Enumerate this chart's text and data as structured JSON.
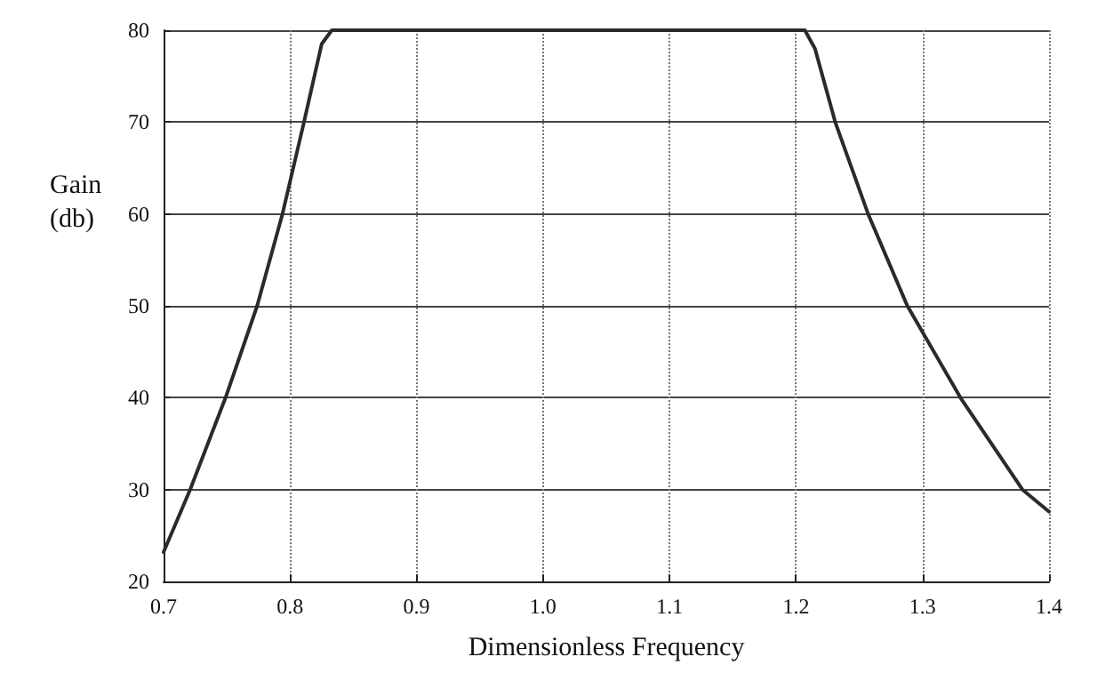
{
  "chart_data": {
    "type": "line",
    "xlabel": "Dimensionless Frequency",
    "ylabel": "Gain\n(db)",
    "series": [
      {
        "color": "#2a2a2a",
        "x": [
          0.7,
          0.721,
          0.749,
          0.774,
          0.794,
          0.811,
          0.825,
          0.833,
          1.2,
          1.207,
          1.215,
          1.231,
          1.257,
          1.288,
          1.33,
          1.379,
          1.4
        ],
        "values": [
          23.2,
          30,
          40,
          50,
          60,
          70,
          78.5,
          80,
          80,
          80,
          78,
          70,
          60,
          50,
          40,
          30,
          27.6
        ]
      }
    ],
    "xlim": [
      0.7,
      1.4
    ],
    "xticks": [
      0.7,
      0.8,
      0.9,
      {
        "value": 1.0,
        "label": "1.0"
      },
      1.1,
      1.2,
      1.3,
      1.4
    ],
    "ylim": [
      20,
      80
    ],
    "yticks": [
      20,
      30,
      40,
      50,
      60,
      70,
      80
    ],
    "grid": true,
    "marker": "none",
    "line_style": "solid"
  }
}
